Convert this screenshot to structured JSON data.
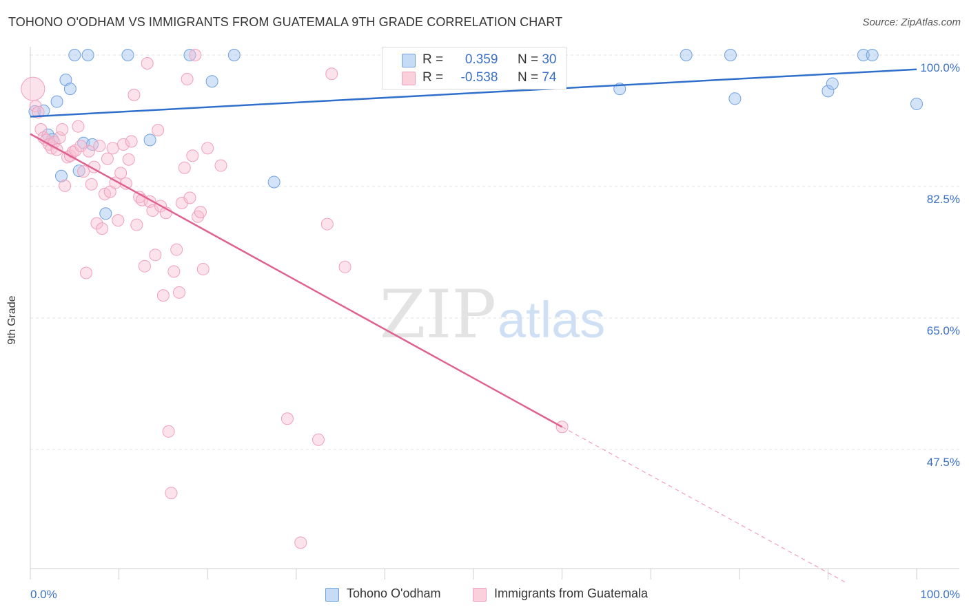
{
  "title": "TOHONO O'ODHAM VS IMMIGRANTS FROM GUATEMALA 9TH GRADE CORRELATION CHART",
  "source": "Source: ZipAtlas.com",
  "watermark": {
    "zip": "ZIP",
    "atlas": "atlas"
  },
  "legend": {
    "r_label": "R =",
    "n_label": "N =",
    "rows": [
      {
        "r": "0.359",
        "n": "30"
      },
      {
        "r": "-0.538",
        "n": "74"
      }
    ]
  },
  "chart_data": {
    "type": "scatter",
    "title": "TOHONO O'ODHAM VS IMMIGRANTS FROM GUATEMALA 9TH GRADE CORRELATION CHART",
    "xlabel": "",
    "ylabel": "9th Grade",
    "xlim": [
      0,
      100
    ],
    "ylim": [
      30,
      100
    ],
    "x_tick_labels": [
      "0.0%",
      "100.0%"
    ],
    "y_ticks": [
      100,
      82.5,
      65,
      47.5
    ],
    "y_tick_labels": [
      "100.0%",
      "82.5%",
      "65.0%",
      "47.5%"
    ],
    "grid": true,
    "legend_position": "top-center",
    "colors": {
      "blue": "#6fa0e0",
      "blue_line": "#2f6fcc",
      "pink": "#f0a0b8",
      "pink_line": "#e06090",
      "axis_text": "#3a6fc4"
    },
    "series": [
      {
        "name": "Tohono O'odham",
        "color": "#6fa0e0",
        "trend": {
          "x": [
            0,
            100
          ],
          "y": [
            91.8,
            98.1
          ]
        },
        "points": [
          [
            0.5,
            92.5
          ],
          [
            1.5,
            92.6
          ],
          [
            2.0,
            89.4
          ],
          [
            2.5,
            88.8
          ],
          [
            3.0,
            93.8
          ],
          [
            3.5,
            83.9
          ],
          [
            4.0,
            96.7
          ],
          [
            4.5,
            95.5
          ],
          [
            5.0,
            100.0
          ],
          [
            5.5,
            84.6
          ],
          [
            6.0,
            88.3
          ],
          [
            6.5,
            100.0
          ],
          [
            7.0,
            88.1
          ],
          [
            8.5,
            78.9
          ],
          [
            11.0,
            100.0
          ],
          [
            13.5,
            88.7
          ],
          [
            18.0,
            100.0
          ],
          [
            20.5,
            96.5
          ],
          [
            23.0,
            100.0
          ],
          [
            27.5,
            83.1
          ],
          [
            47.5,
            100.0
          ],
          [
            66.5,
            95.5
          ],
          [
            74.0,
            100.0
          ],
          [
            79.0,
            100.0
          ],
          [
            79.5,
            94.2
          ],
          [
            90.0,
            95.2
          ],
          [
            90.5,
            96.2
          ],
          [
            94.0,
            100.0
          ],
          [
            100.0,
            93.5
          ],
          [
            95.0,
            100.0
          ]
        ]
      },
      {
        "name": "Immigrants from Guatemala",
        "color": "#f0a0b8",
        "trend": {
          "x": [
            0,
            60
          ],
          "y": [
            89.5,
            50.5
          ]
        },
        "trend_dashed": {
          "x": [
            60,
            92
          ],
          "y": [
            50.5,
            29.8
          ]
        },
        "points": [
          [
            0.3,
            95.5
          ],
          [
            0.6,
            93.2
          ],
          [
            0.9,
            92.4
          ],
          [
            1.2,
            90.1
          ],
          [
            1.5,
            89.0
          ],
          [
            1.8,
            88.7
          ],
          [
            2.1,
            88.1
          ],
          [
            2.4,
            87.6
          ],
          [
            2.7,
            88.4
          ],
          [
            3.0,
            87.4
          ],
          [
            3.3,
            89.0
          ],
          [
            3.6,
            90.1
          ],
          [
            3.9,
            82.6
          ],
          [
            4.2,
            86.4
          ],
          [
            4.5,
            86.6
          ],
          [
            4.8,
            87.1
          ],
          [
            5.1,
            87.3
          ],
          [
            5.4,
            90.5
          ],
          [
            5.7,
            87.9
          ],
          [
            6.0,
            84.5
          ],
          [
            6.3,
            71.0
          ],
          [
            6.6,
            87.2
          ],
          [
            6.9,
            82.8
          ],
          [
            7.2,
            85.1
          ],
          [
            7.5,
            77.6
          ],
          [
            7.8,
            87.9
          ],
          [
            8.1,
            76.9
          ],
          [
            8.4,
            81.5
          ],
          [
            8.7,
            86.2
          ],
          [
            9.0,
            81.8
          ],
          [
            9.3,
            87.6
          ],
          [
            9.6,
            83.0
          ],
          [
            9.9,
            78.0
          ],
          [
            10.2,
            84.3
          ],
          [
            10.5,
            88.1
          ],
          [
            10.8,
            82.9
          ],
          [
            11.1,
            86.1
          ],
          [
            11.4,
            88.5
          ],
          [
            11.7,
            94.7
          ],
          [
            12.0,
            77.4
          ],
          [
            12.3,
            81.1
          ],
          [
            12.6,
            80.7
          ],
          [
            12.9,
            71.9
          ],
          [
            13.2,
            98.9
          ],
          [
            13.5,
            80.5
          ],
          [
            13.8,
            79.3
          ],
          [
            14.1,
            73.4
          ],
          [
            14.4,
            90.0
          ],
          [
            14.7,
            79.9
          ],
          [
            15.0,
            68.0
          ],
          [
            15.3,
            79.0
          ],
          [
            15.6,
            49.9
          ],
          [
            15.9,
            41.7
          ],
          [
            16.2,
            71.2
          ],
          [
            16.5,
            74.1
          ],
          [
            16.8,
            68.4
          ],
          [
            17.1,
            80.3
          ],
          [
            17.4,
            85.0
          ],
          [
            17.7,
            96.8
          ],
          [
            18.0,
            81.0
          ],
          [
            18.3,
            86.6
          ],
          [
            18.6,
            100.0
          ],
          [
            18.9,
            78.5
          ],
          [
            19.2,
            79.1
          ],
          [
            19.5,
            71.5
          ],
          [
            20.0,
            87.6
          ],
          [
            29.0,
            51.6
          ],
          [
            30.5,
            35.1
          ],
          [
            32.5,
            48.8
          ],
          [
            33.5,
            77.5
          ],
          [
            34.0,
            97.5
          ],
          [
            35.5,
            71.8
          ],
          [
            60.0,
            50.5
          ],
          [
            21.5,
            85.3
          ]
        ]
      }
    ]
  }
}
